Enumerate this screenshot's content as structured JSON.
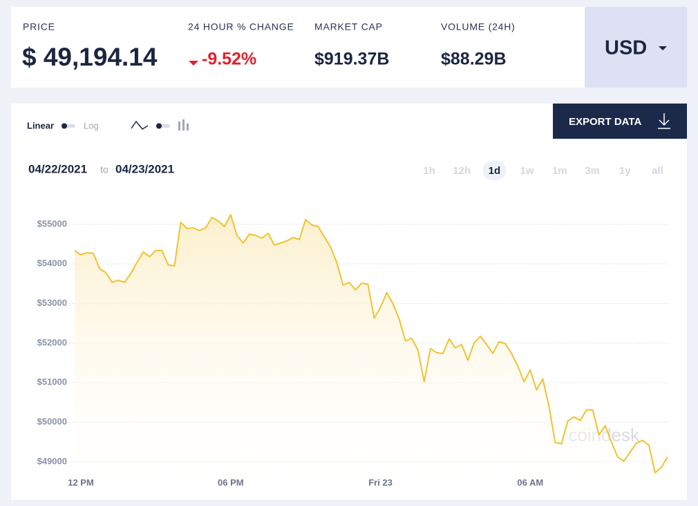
{
  "header": {
    "price_label": "PRICE",
    "price": "$ 49,194.14",
    "change_label": "24 HOUR % CHANGE",
    "change": "-9.52%",
    "market_cap_label": "MARKET CAP",
    "market_cap": "$919.37B",
    "volume_label": "VOLUME (24H)",
    "volume": "$88.29B",
    "currency": "USD"
  },
  "controls": {
    "linear": "Linear",
    "log": "Log",
    "export": "EXPORT DATA",
    "range_from": "04/22/2021",
    "range_word": "to",
    "range_to": "04/23/2021",
    "periods": [
      "1h",
      "12h",
      "1d",
      "1w",
      "1m",
      "3m",
      "1y",
      "all"
    ],
    "selected_period": "1d",
    "watermark": "coindesk"
  },
  "chart_data": {
    "type": "area",
    "color": "#f2c12e",
    "grid": true,
    "x": [
      -0.25,
      0,
      0.25,
      0.5,
      0.75,
      1,
      1.25,
      1.5,
      1.75,
      2,
      2.25,
      2.5,
      2.75,
      3,
      3.25,
      3.5,
      3.75,
      4,
      4.25,
      4.5,
      4.75,
      5,
      5.25,
      5.5,
      5.75,
      6,
      6.25,
      6.5,
      6.75,
      7,
      7.25,
      7.5,
      7.75,
      8,
      8.25,
      8.5,
      8.75,
      9,
      9.25,
      9.5,
      9.75,
      10,
      10.25,
      10.5,
      10.75,
      11,
      11.25,
      11.5,
      11.75,
      12,
      12.25,
      12.5,
      12.75,
      13,
      13.25,
      13.5,
      13.75,
      14,
      14.25,
      14.5,
      14.75,
      15,
      15.25,
      15.5,
      15.75,
      16,
      16.25,
      16.5,
      16.75,
      17,
      17.25,
      17.5,
      17.75,
      18,
      18.25,
      18.5,
      18.75,
      19,
      19.25,
      19.5,
      19.75,
      20,
      20.25,
      20.5,
      20.75,
      21,
      21.25,
      21.5,
      21.75,
      22,
      22.25,
      22.5,
      22.75,
      23,
      23.25,
      23.5
    ],
    "values": [
      54337,
      54232,
      54284,
      54267,
      53883,
      53779,
      53534,
      53587,
      53534,
      53761,
      54040,
      54302,
      54180,
      54337,
      54337,
      53970,
      53953,
      55052,
      54895,
      54912,
      54842,
      54912,
      55174,
      55087,
      54947,
      55244,
      54720,
      54528,
      54755,
      54720,
      54651,
      54773,
      54476,
      54528,
      54581,
      54668,
      54616,
      55121,
      54982,
      54947,
      54685,
      54424,
      54040,
      53465,
      53534,
      53343,
      53517,
      53482,
      52628,
      52907,
      53273,
      52994,
      52610,
      52052,
      52122,
      51825,
      51023,
      51860,
      51756,
      51738,
      52104,
      51878,
      51965,
      51564,
      52000,
      52174,
      51965,
      51738,
      52035,
      51982,
      51738,
      51424,
      51023,
      51320,
      50814,
      51093,
      50395,
      49488,
      49453,
      50029,
      50134,
      50046,
      50308,
      50308,
      49680,
      49907,
      49506,
      49122,
      49017,
      49244,
      49471,
      49541,
      49419,
      48721,
      48860,
      49122
    ],
    "xlim": [
      -0.25,
      23.5
    ],
    "xticks": [
      {
        "value": 0,
        "label": "12 PM"
      },
      {
        "value": 6,
        "label": "06 PM"
      },
      {
        "value": 12,
        "label": "Fri 23"
      },
      {
        "value": 18,
        "label": "06 AM"
      }
    ],
    "ylim": [
      48650,
      55500
    ],
    "yticks": [
      {
        "value": 49000,
        "label": "$49000"
      },
      {
        "value": 50000,
        "label": "$50000"
      },
      {
        "value": 51000,
        "label": "$51000"
      },
      {
        "value": 52000,
        "label": "$52000"
      },
      {
        "value": 53000,
        "label": "$53000"
      },
      {
        "value": 54000,
        "label": "$54000"
      },
      {
        "value": 55000,
        "label": "$55000"
      }
    ]
  }
}
